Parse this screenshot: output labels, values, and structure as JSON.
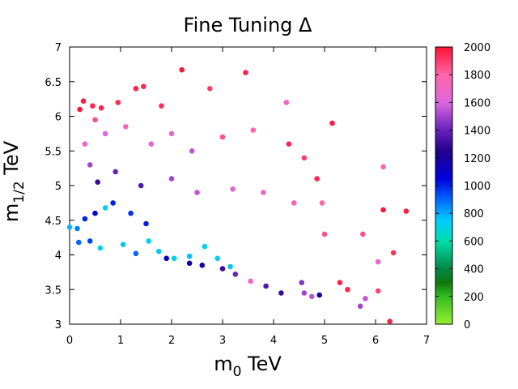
{
  "chart_data": {
    "type": "scatter",
    "title": "Fine Tuning Δ",
    "xlabel_main": "m",
    "xlabel_sub": "0",
    "xlabel_unit": " TeV",
    "ylabel_main": "m",
    "ylabel_sub": "1/2",
    "ylabel_unit": " TeV",
    "xlim": [
      0,
      7
    ],
    "ylim": [
      3,
      7
    ],
    "xticks": [
      "0",
      "1",
      "2",
      "3",
      "4",
      "5",
      "6",
      "7"
    ],
    "yticks": [
      "3",
      "3.5",
      "4",
      "4.5",
      "5",
      "5.5",
      "6",
      "6.5",
      "7"
    ],
    "grid": false,
    "colorbar": {
      "range": [
        0,
        2000
      ],
      "ticks": [
        "0",
        "200",
        "400",
        "600",
        "800",
        "1000",
        "1200",
        "1400",
        "1600",
        "1800",
        "2000"
      ],
      "stops": [
        {
          "v": 0,
          "color": "#99ee33"
        },
        {
          "v": 200,
          "color": "#33bb22"
        },
        {
          "v": 300,
          "color": "#117711"
        },
        {
          "v": 400,
          "color": "#008844"
        },
        {
          "v": 600,
          "color": "#00ddaa"
        },
        {
          "v": 750,
          "color": "#00ccff"
        },
        {
          "v": 900,
          "color": "#0066ff"
        },
        {
          "v": 1050,
          "color": "#0000dd"
        },
        {
          "v": 1250,
          "color": "#220088"
        },
        {
          "v": 1400,
          "color": "#6622bb"
        },
        {
          "v": 1600,
          "color": "#dd66dd"
        },
        {
          "v": 1800,
          "color": "#ff66aa"
        },
        {
          "v": 2000,
          "color": "#ff1133"
        }
      ]
    },
    "points": [
      [
        0.2,
        6.1,
        1990
      ],
      [
        0.27,
        6.22,
        1980
      ],
      [
        0.45,
        6.15,
        1950
      ],
      [
        0.62,
        6.12,
        1960
      ],
      [
        0.95,
        6.2,
        1940
      ],
      [
        1.3,
        6.4,
        1960
      ],
      [
        1.45,
        6.43,
        1950
      ],
      [
        1.8,
        6.15,
        1930
      ],
      [
        2.2,
        6.67,
        1990
      ],
      [
        2.75,
        6.4,
        1900
      ],
      [
        3.45,
        6.63,
        1960
      ],
      [
        4.25,
        6.2,
        1700
      ],
      [
        5.15,
        5.9,
        1980
      ],
      [
        6.15,
        5.27,
        1800
      ],
      [
        6.15,
        4.65,
        1990
      ],
      [
        6.6,
        4.63,
        1970
      ],
      [
        5.75,
        4.3,
        1850
      ],
      [
        6.35,
        4.03,
        1930
      ],
      [
        6.05,
        3.9,
        1700
      ],
      [
        5.3,
        3.6,
        1960
      ],
      [
        5.45,
        3.5,
        1950
      ],
      [
        6.05,
        3.48,
        1880
      ],
      [
        5.8,
        3.37,
        1550
      ],
      [
        5.7,
        3.26,
        1500
      ],
      [
        6.28,
        3.04,
        1960
      ],
      [
        0.0,
        4.4,
        780
      ],
      [
        0.15,
        4.38,
        860
      ],
      [
        0.18,
        4.18,
        900
      ],
      [
        0.4,
        4.2,
        950
      ],
      [
        0.6,
        4.1,
        700
      ],
      [
        0.7,
        4.68,
        720
      ],
      [
        1.05,
        4.15,
        760
      ],
      [
        1.55,
        4.2,
        720
      ],
      [
        1.75,
        4.05,
        760
      ],
      [
        2.05,
        3.95,
        720
      ],
      [
        2.35,
        3.98,
        760
      ],
      [
        2.65,
        4.12,
        720
      ],
      [
        2.9,
        3.95,
        730
      ],
      [
        3.15,
        3.83,
        760
      ],
      [
        0.3,
        4.52,
        1000
      ],
      [
        0.5,
        4.6,
        1050
      ],
      [
        0.85,
        4.75,
        1000
      ],
      [
        1.2,
        4.6,
        980
      ],
      [
        1.5,
        4.45,
        1000
      ],
      [
        0.3,
        5.6,
        1700
      ],
      [
        0.5,
        5.95,
        1850
      ],
      [
        0.7,
        5.75,
        1600
      ],
      [
        0.4,
        5.3,
        1500
      ],
      [
        1.1,
        5.85,
        1750
      ],
      [
        1.6,
        5.6,
        1600
      ],
      [
        2.0,
        5.75,
        1700
      ],
      [
        2.4,
        5.5,
        1550
      ],
      [
        3.0,
        5.7,
        1850
      ],
      [
        3.6,
        5.8,
        1800
      ],
      [
        4.3,
        5.6,
        1950
      ],
      [
        4.6,
        5.4,
        1900
      ],
      [
        4.85,
        5.1,
        1950
      ],
      [
        4.95,
        4.75,
        1800
      ],
      [
        5.0,
        4.3,
        1850
      ],
      [
        4.6,
        3.45,
        1500
      ],
      [
        4.9,
        3.42,
        1200
      ],
      [
        4.75,
        3.4,
        1550
      ],
      [
        4.55,
        3.6,
        1450
      ],
      [
        4.15,
        3.45,
        1300
      ],
      [
        3.85,
        3.55,
        1350
      ],
      [
        3.55,
        3.62,
        1700
      ],
      [
        3.25,
        3.72,
        1400
      ],
      [
        3.0,
        3.8,
        1300
      ],
      [
        2.6,
        3.85,
        1200
      ],
      [
        2.35,
        3.88,
        1150
      ],
      [
        1.9,
        3.95,
        1100
      ],
      [
        1.3,
        4.02,
        900
      ],
      [
        0.55,
        5.05,
        1300
      ],
      [
        0.9,
        5.2,
        1400
      ],
      [
        1.4,
        5.0,
        1350
      ],
      [
        2.0,
        5.1,
        1500
      ],
      [
        2.5,
        4.9,
        1550
      ],
      [
        3.2,
        4.95,
        1650
      ],
      [
        3.8,
        4.9,
        1700
      ],
      [
        4.4,
        4.75,
        1750
      ]
    ]
  }
}
